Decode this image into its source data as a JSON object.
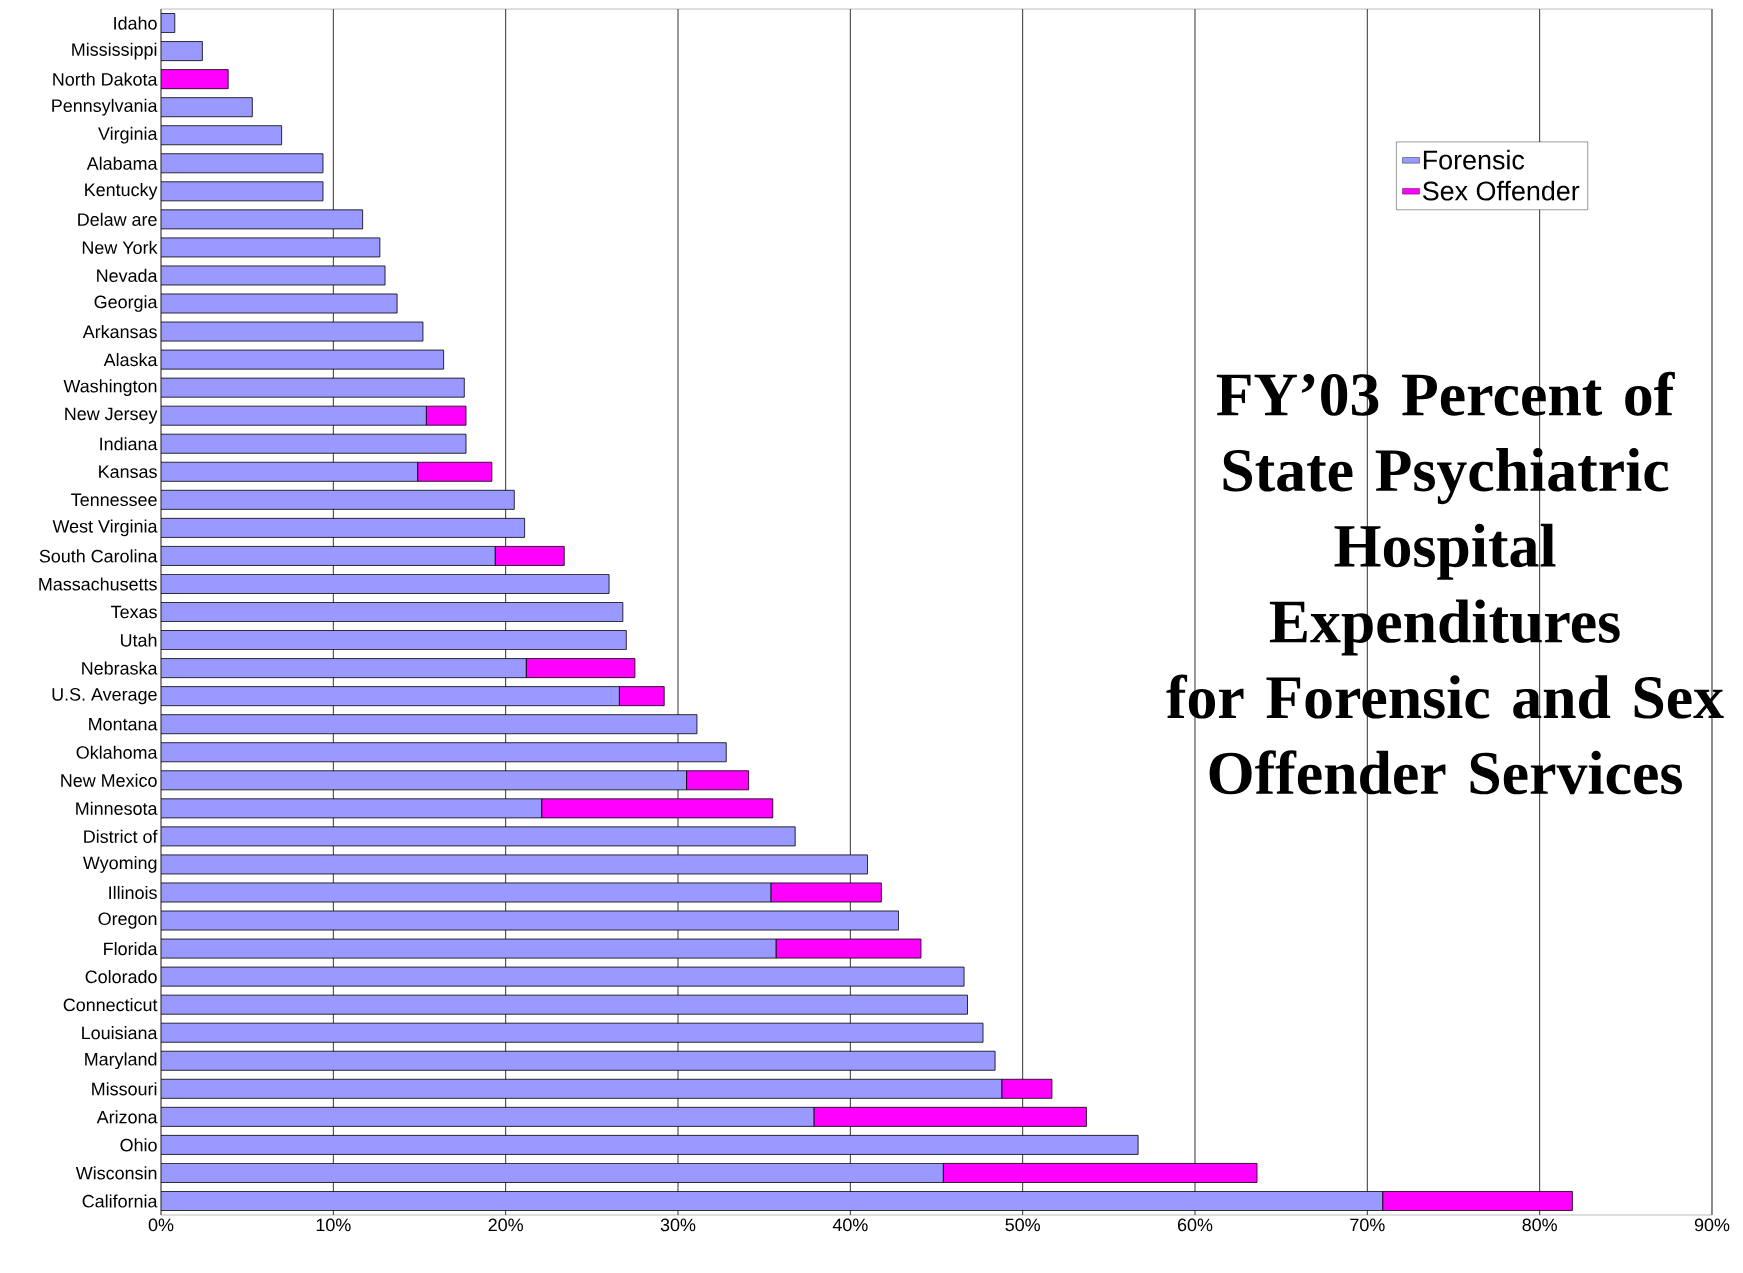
{
  "chart_data": {
    "type": "bar",
    "orientation": "horizontal",
    "stacked": true,
    "title": "FY’03 Percent of State Psychiatric Hospital Expenditures for Forensic and Sex Offender Services",
    "categories": [
      "Idaho",
      "Mississippi",
      "North Dakota",
      "Pennsylvania",
      "Virginia",
      "Alabama",
      "Kentucky",
      "Delaw are",
      "New York",
      "Nevada",
      "Georgia",
      "Arkansas",
      "Alaska",
      "Washington",
      "New Jersey",
      "Indiana",
      "Kansas",
      "Tennessee",
      "West Virginia",
      "South Carolina",
      "Massachusetts",
      "Texas",
      "Utah",
      "Nebraska",
      "U.S. Average",
      "Montana",
      "Oklahoma",
      "New Mexico",
      "Minnesota",
      "District of",
      "Wyoming",
      "Illinois",
      "Oregon",
      "Florida",
      "Colorado",
      "Connecticut",
      "Louisiana",
      "Maryland",
      "Missouri",
      "Arizona",
      "Ohio",
      "Wisconsin",
      "California"
    ],
    "series": [
      {
        "name": "Forensic",
        "color": "#9999ff",
        "values": [
          0.8,
          2.4,
          null,
          5.3,
          7.0,
          9.4,
          9.4,
          11.7,
          12.7,
          13.0,
          13.7,
          15.2,
          16.4,
          17.6,
          15.4,
          17.7,
          14.9,
          20.5,
          21.1,
          19.4,
          26.0,
          26.8,
          27.0,
          21.2,
          26.6,
          31.1,
          32.8,
          30.5,
          22.1,
          36.8,
          41.0,
          35.4,
          42.8,
          35.7,
          46.6,
          46.8,
          47.7,
          48.4,
          48.8,
          37.9,
          56.7,
          45.4,
          70.9
        ]
      },
      {
        "name": "Sex Offender",
        "color": "#ff00ff",
        "values": [
          null,
          null,
          3.9,
          null,
          null,
          null,
          null,
          null,
          null,
          null,
          null,
          null,
          null,
          null,
          2.3,
          null,
          4.3,
          null,
          null,
          4.0,
          null,
          null,
          null,
          6.3,
          2.6,
          null,
          null,
          3.6,
          13.4,
          null,
          null,
          6.4,
          null,
          8.4,
          null,
          null,
          null,
          null,
          2.9,
          15.8,
          null,
          18.2,
          11.0
        ]
      }
    ],
    "xlim": [
      0,
      90
    ],
    "xticks": [
      {
        "value": 0,
        "label": "0%"
      },
      {
        "value": 10,
        "label": "10%"
      },
      {
        "value": 20,
        "label": "20%"
      },
      {
        "value": 30,
        "label": "30%"
      },
      {
        "value": 40,
        "label": "40%"
      },
      {
        "value": 50,
        "label": "50%"
      },
      {
        "value": 60,
        "label": "60%"
      },
      {
        "value": 70,
        "label": "70%"
      },
      {
        "value": 80,
        "label": "80%"
      },
      {
        "value": 90,
        "label": "90%"
      }
    ],
    "grid": "x",
    "legend": "top right"
  }
}
